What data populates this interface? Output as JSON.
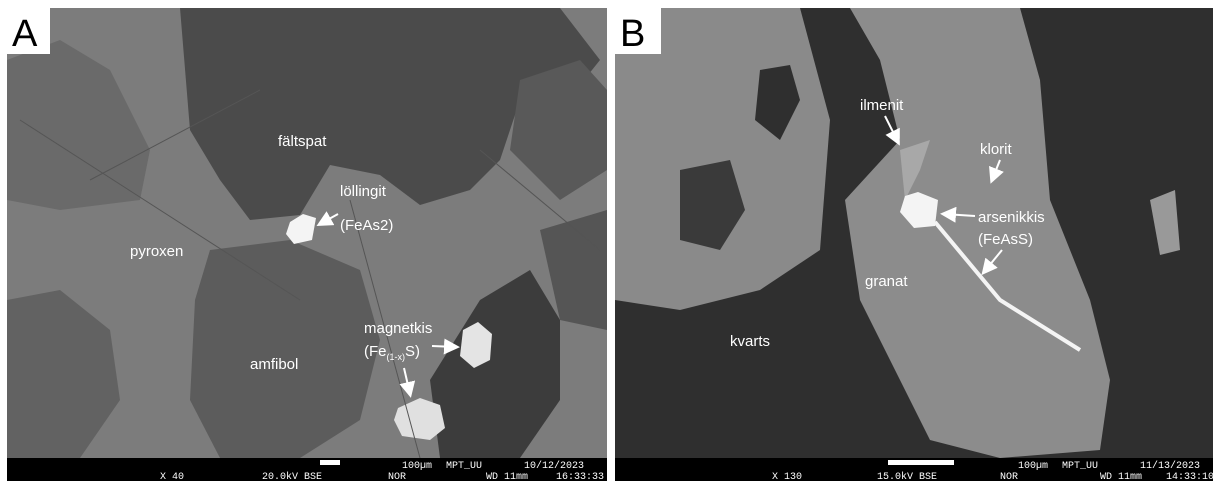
{
  "panels": [
    {
      "letter": "A",
      "labels": {
        "faltspat": "fältspat",
        "lollingit": "löllingit",
        "lollingit_formula": "(FeAs2)",
        "pyroxen": "pyroxen",
        "magnetkis": "magnetkis",
        "magnetkis_formula": {
          "before": "(Fe",
          "sub": "(1-x)",
          "after": "S)"
        },
        "amfibol": "amfibol"
      },
      "info_bar": {
        "magnification": "X 40",
        "voltage": "20.0kV BSE",
        "mode": "NOR",
        "scale": "100µm",
        "lab": "MPT_UU",
        "wd": "WD 11mm",
        "date": "10/12/2023",
        "time": "16:33:33"
      }
    },
    {
      "letter": "B",
      "labels": {
        "ilmenit": "ilmenit",
        "klorit": "klorit",
        "arsenikkis": "arsenikkis",
        "arsenikkis_formula": "(FeAsS)",
        "granat": "granat",
        "kvarts": "kvarts"
      },
      "info_bar": {
        "magnification": "X 130",
        "voltage": "15.0kV BSE",
        "mode": "NOR",
        "scale": "100µm",
        "lab": "MPT_UU",
        "wd": "WD 11mm",
        "date": "11/13/2023",
        "time": "14:33:10"
      }
    }
  ]
}
